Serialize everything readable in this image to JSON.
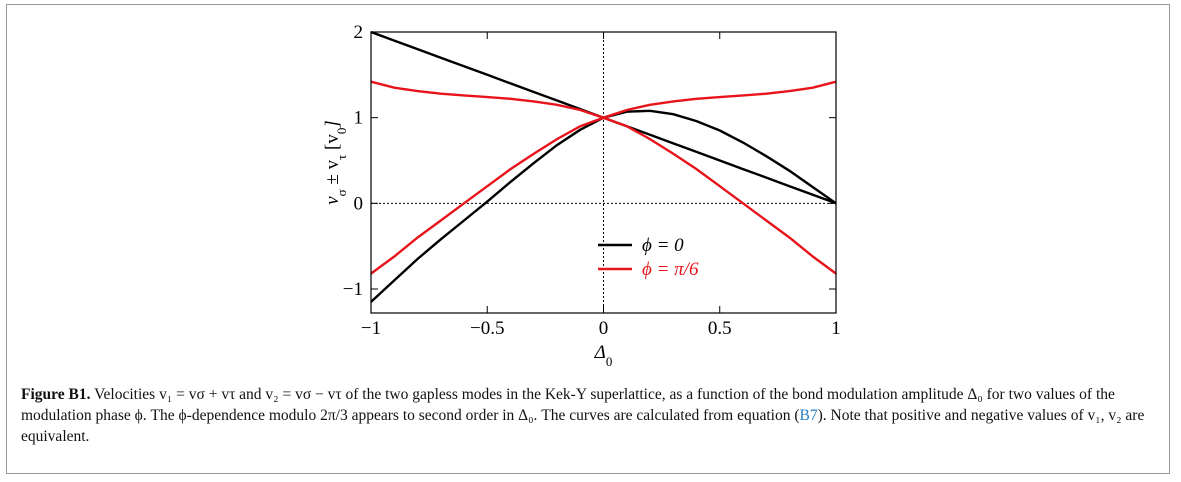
{
  "chart_data": {
    "type": "line",
    "x": [
      -1,
      -0.9,
      -0.8,
      -0.7,
      -0.6,
      -0.5,
      -0.4,
      -0.3,
      -0.2,
      -0.1,
      0,
      0.1,
      0.2,
      0.3,
      0.4,
      0.5,
      0.6,
      0.7,
      0.8,
      0.9,
      1
    ],
    "series": [
      {
        "name": "ϕ = 0",
        "color": "#000000",
        "curves": [
          [
            2,
            1.9,
            1.8,
            1.7,
            1.6,
            1.5,
            1.4,
            1.3,
            1.2,
            1.1,
            1,
            0.9,
            0.8,
            0.7,
            0.6,
            0.5,
            0.4,
            0.3,
            0.2,
            0.1,
            0
          ],
          [
            -1.15,
            -0.9,
            -0.65,
            -0.42,
            -0.2,
            0.02,
            0.25,
            0.47,
            0.68,
            0.86,
            1,
            1.07,
            1.08,
            1.04,
            0.96,
            0.85,
            0.71,
            0.55,
            0.38,
            0.19,
            0
          ]
        ]
      },
      {
        "name": "ϕ = π/6",
        "color": "#e8141c",
        "curves": [
          [
            1.42,
            1.35,
            1.31,
            1.28,
            1.26,
            1.24,
            1.22,
            1.19,
            1.15,
            1.09,
            1,
            1.09,
            1.15,
            1.19,
            1.22,
            1.24,
            1.26,
            1.28,
            1.31,
            1.35,
            1.42
          ],
          [
            -0.82,
            -0.62,
            -0.4,
            -0.2,
            0,
            0.2,
            0.4,
            0.58,
            0.75,
            0.9,
            1,
            0.9,
            0.75,
            0.58,
            0.4,
            0.2,
            0,
            -0.2,
            -0.4,
            -0.62,
            -0.82
          ]
        ]
      }
    ],
    "xlim": [
      -1,
      1
    ],
    "ylim": [
      -1.28,
      2
    ],
    "xticks": [
      {
        "value": -1,
        "label": "−1"
      },
      {
        "value": -0.5,
        "label": "−0.5"
      },
      0,
      0.5,
      1
    ],
    "yticks": [
      {
        "value": -1,
        "label": "−1"
      },
      0,
      1,
      2
    ],
    "zero_lines": true,
    "x_label_parts": [
      "Δ",
      "0"
    ],
    "y_label_parts": [
      "v",
      "σ",
      " ± v",
      "τ",
      "  [v",
      "0",
      "]"
    ]
  },
  "caption": {
    "label": "Figure B1.",
    "text_1": "Velocities v₁ = vσ + vτ and v₂ = vσ − vτ of the two gapless modes in the Kek-Y superlattice, as a function of the bond modulation amplitude Δ₀ for two values of the modulation phase ϕ. The ϕ-dependence modulo 2π/3 appears to second order in Δ₀. The curves are calculated from equation (",
    "ref": "B7",
    "text_2": "). Note that positive and negative values of v₁, v₂ are equivalent."
  }
}
